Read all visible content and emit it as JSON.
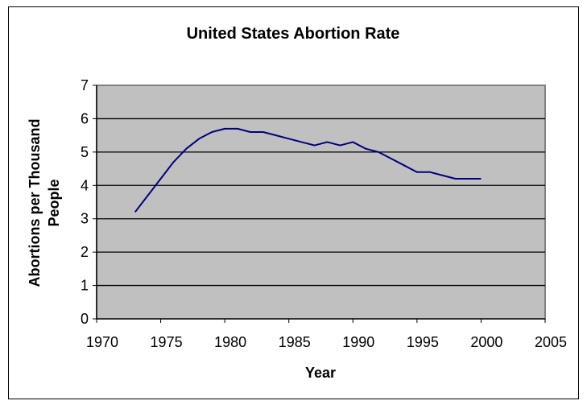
{
  "chart_data": {
    "type": "line",
    "title": "United States Abortion Rate",
    "xlabel": "Year",
    "ylabel": "Abortions per Thousand People",
    "ylabel_lines": [
      "Abortions per Thousand",
      "People"
    ],
    "xlim": [
      1970,
      2005
    ],
    "ylim": [
      0,
      7
    ],
    "xticks": [
      1970,
      1975,
      1980,
      1985,
      1990,
      1995,
      2000,
      2005
    ],
    "yticks": [
      0,
      1,
      2,
      3,
      4,
      5,
      6,
      7
    ],
    "grid": "horizontal",
    "legend": "none",
    "plot_background": "#c0c0c0",
    "line_color": "#000080",
    "x": [
      1973,
      1974,
      1975,
      1976,
      1977,
      1978,
      1979,
      1980,
      1981,
      1982,
      1983,
      1984,
      1985,
      1986,
      1987,
      1988,
      1989,
      1990,
      1991,
      1992,
      1993,
      1994,
      1995,
      1996,
      1997,
      1998,
      1999,
      2000
    ],
    "y": [
      3.2,
      3.7,
      4.2,
      4.7,
      5.1,
      5.4,
      5.6,
      5.7,
      5.7,
      5.6,
      5.6,
      5.5,
      5.4,
      5.3,
      5.2,
      5.3,
      5.2,
      5.3,
      5.1,
      5.0,
      4.8,
      4.6,
      4.4,
      4.4,
      4.3,
      4.2,
      4.2,
      4.2
    ]
  }
}
